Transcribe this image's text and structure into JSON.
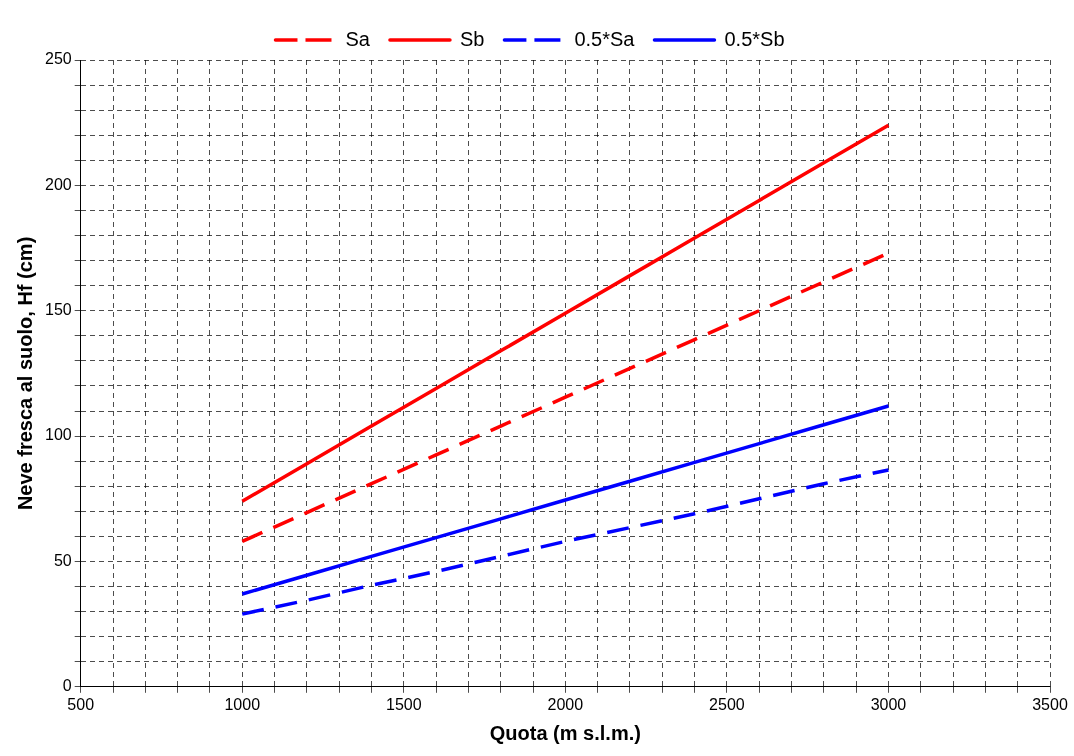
{
  "chart_data": {
    "type": "line",
    "xlabel": "Quota (m s.l.m.)",
    "ylabel": "Neve fresca al suolo, Hf (cm)",
    "x": [
      1000,
      1200,
      1400,
      1600,
      1800,
      2000,
      2200,
      2400,
      2600,
      2800,
      3000
    ],
    "series": [
      {
        "name": "Sa",
        "color": "#ff0000",
        "line_style": "dashed",
        "values": [
          58,
          69.5,
          81,
          92.5,
          104,
          115.5,
          127,
          138.5,
          150,
          161.5,
          173
        ]
      },
      {
        "name": "Sb",
        "color": "#ff0000",
        "line_style": "solid",
        "values": [
          74,
          89,
          104,
          119,
          134,
          149,
          164,
          179,
          194,
          209,
          224
        ]
      },
      {
        "name": "0.5*Sa",
        "color": "#0000ff",
        "line_style": "dashed",
        "values": [
          29,
          34.5,
          40.5,
          46,
          52,
          58,
          63.5,
          69,
          75,
          81,
          86.5
        ]
      },
      {
        "name": "0.5*Sb",
        "color": "#0000ff",
        "line_style": "solid",
        "values": [
          37,
          44.5,
          52,
          59.5,
          67,
          74.5,
          82,
          89.5,
          97,
          104.5,
          112
        ]
      }
    ],
    "xlim": [
      500,
      3500
    ],
    "xticks": [
      500,
      1000,
      1500,
      2000,
      2500,
      3000,
      3500
    ],
    "ylim": [
      0,
      250
    ],
    "yticks": [
      0,
      50,
      100,
      150,
      200,
      250
    ],
    "grid": true,
    "legend": "top",
    "marker": "none"
  }
}
